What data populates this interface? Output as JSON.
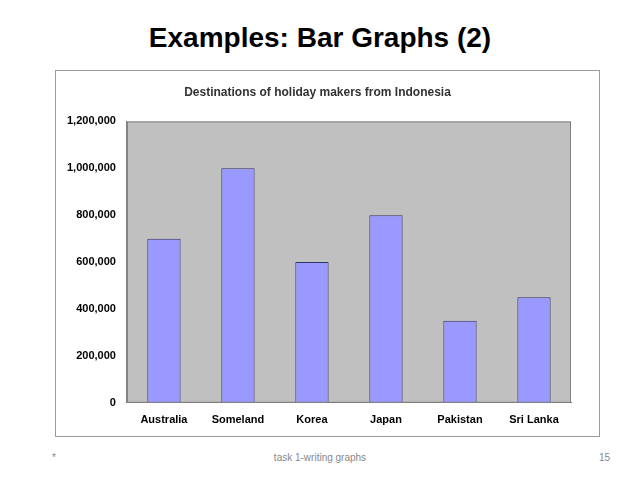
{
  "slide": {
    "heading": "Examples: Bar Graphs (2)",
    "footer_mark": "*",
    "footer_text": "task 1-writing graphs",
    "page": 15
  },
  "chart_data": {
    "type": "bar",
    "title": "Destinations of holiday makers from Indonesia",
    "categories": [
      "Australia",
      "Someland",
      "Korea",
      "Japan",
      "Pakistan",
      "Sri Lanka"
    ],
    "values": [
      700000,
      1000000,
      600000,
      800000,
      350000,
      450000
    ],
    "color": "#9999ff",
    "ylim": [
      0,
      1200000
    ],
    "yticks": [
      0,
      {
        "value": 200000,
        "label": "200,000"
      },
      {
        "value": 400000,
        "label": "400,000"
      },
      {
        "value": 600000,
        "label": "600,000"
      },
      {
        "value": 800000,
        "label": "800,000"
      },
      {
        "value": 1000000,
        "label": "1,000,000"
      },
      {
        "value": 1200000,
        "label": "1,200,000"
      }
    ],
    "grid": false
  }
}
